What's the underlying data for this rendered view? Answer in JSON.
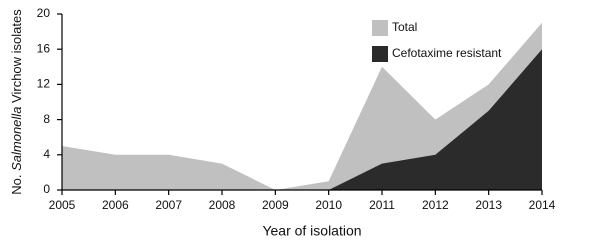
{
  "chart_data": {
    "type": "area",
    "y_label_parts": [
      "No. ",
      "Salmonella",
      " Virchow isolates"
    ],
    "x_label": "Year of isolation",
    "x": [
      2005,
      2006,
      2007,
      2008,
      2009,
      2010,
      2011,
      2012,
      2013,
      2014
    ],
    "xlim": [
      2005,
      2014
    ],
    "xticks": [
      2005,
      2006,
      2007,
      2008,
      2009,
      2010,
      2011,
      2012,
      2013,
      2014
    ],
    "ylim": [
      0,
      20
    ],
    "yticks": [
      0,
      4,
      8,
      12,
      16,
      20
    ],
    "grid": false,
    "legend": "upper-middle",
    "series": [
      {
        "name": "Total",
        "color": "#c0c0c0",
        "values": [
          5,
          4,
          4,
          3,
          0,
          1,
          14,
          8,
          12,
          19
        ]
      },
      {
        "name": "Cefotaxime resistant",
        "color": "#2b2b2b",
        "values": [
          null,
          null,
          null,
          null,
          null,
          0,
          3,
          4,
          9,
          16
        ]
      }
    ]
  }
}
